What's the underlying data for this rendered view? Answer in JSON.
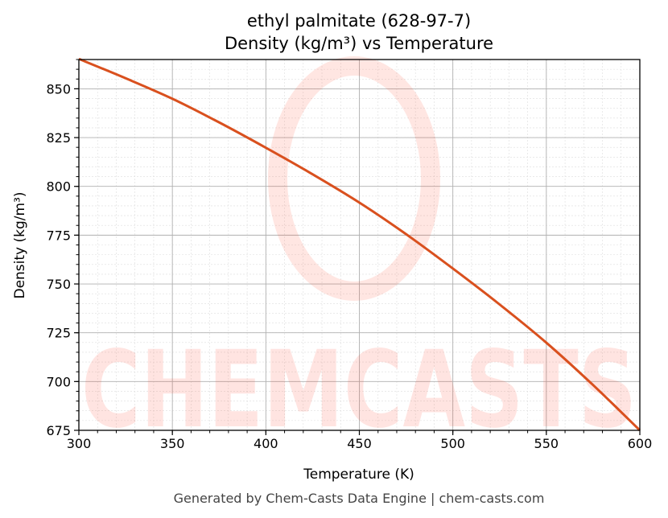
{
  "chart_data": {
    "type": "line",
    "title": "ethyl palmitate (628-97-7)",
    "subtitle": "Density (kg/m³) vs Temperature",
    "xlabel": "Temperature (K)",
    "ylabel": "Density (kg/m³)",
    "xlim": [
      300,
      600
    ],
    "ylim": [
      675,
      865
    ],
    "xticks": [
      300,
      350,
      400,
      450,
      500,
      550,
      600
    ],
    "yticks": [
      675,
      700,
      725,
      750,
      775,
      800,
      825,
      850
    ],
    "grid": true,
    "series": [
      {
        "name": "Density",
        "color": "#d9501e",
        "x": [
          300,
          325,
          350,
          375,
          400,
          425,
          450,
          475,
          500,
          525,
          550,
          575,
          600
        ],
        "y": [
          865.3,
          855.4,
          844.9,
          832.8,
          819.8,
          806.2,
          791.7,
          775.5,
          757.9,
          739.5,
          719.9,
          698.2,
          675.0
        ]
      }
    ],
    "watermark": "CHEMCASTS",
    "footer": "Generated by Chem-Casts Data Engine | chem-casts.com"
  }
}
